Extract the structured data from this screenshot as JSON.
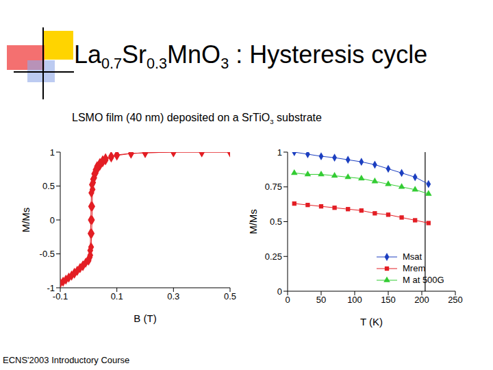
{
  "slide": {
    "title": "La0.7Sr0.3MnO3 : Hysteresis cycle",
    "subtitle": "LSMO film (40 nm) deposited on a SrTiO3 substrate",
    "footer": "ECNS'2003 Introductory Course"
  },
  "chart_data": [
    {
      "type": "scatter",
      "x_label": "B (T)",
      "y_label": "M/Ms",
      "xlim": [
        -0.1,
        0.5
      ],
      "xticks": [
        -0.1,
        0.1,
        0.3,
        0.5
      ],
      "ylim": [
        -1,
        1
      ],
      "yticks": [
        -1,
        -0.5,
        0,
        0.5,
        1
      ],
      "marker": "diamond",
      "line_style": "solid",
      "series": [
        {
          "color": "#e31e24",
          "x": [
            -0.1,
            -0.09,
            -0.08,
            -0.07,
            -0.06,
            -0.05,
            -0.04,
            -0.03,
            -0.02,
            -0.01,
            0,
            0.006,
            0.009,
            0.011,
            0.012,
            0.013,
            0.014,
            0.016,
            0.02,
            0.025,
            0.03,
            0.04,
            0.05,
            0.06,
            0.08,
            0.1,
            0.15,
            0.2,
            0.3,
            0.4,
            0.5
          ],
          "values": [
            -0.93,
            -0.91,
            -0.88,
            -0.85,
            -0.82,
            -0.78,
            -0.75,
            -0.71,
            -0.67,
            -0.63,
            -0.58,
            -0.52,
            -0.4,
            -0.2,
            0,
            0.2,
            0.45,
            0.55,
            0.62,
            0.69,
            0.74,
            0.8,
            0.85,
            0.88,
            0.92,
            0.95,
            0.98,
            0.99,
            1,
            1,
            1
          ]
        },
        {
          "color": "#e31e24",
          "x": [
            0.5,
            0.4,
            0.3,
            0.2,
            0.15,
            0.1,
            0.08,
            0.06,
            0.05,
            0.04,
            0.03,
            0.025,
            0.02,
            0.016,
            0.012,
            0.01,
            0.009,
            0.008,
            0.007,
            0.006,
            0.004,
            0,
            -0.02,
            -0.05,
            -0.1
          ],
          "values": [
            1,
            1,
            1,
            0.99,
            0.98,
            0.96,
            0.94,
            0.91,
            0.88,
            0.84,
            0.79,
            0.74,
            0.68,
            0.6,
            0.52,
            0.4,
            0.2,
            0,
            -0.2,
            -0.45,
            -0.55,
            -0.6,
            -0.68,
            -0.79,
            -0.93
          ]
        }
      ]
    },
    {
      "type": "line",
      "x_label": "T (K)",
      "y_label": "M/Ms",
      "x": [
        10,
        30,
        50,
        70,
        90,
        110,
        130,
        150,
        170,
        190,
        210
      ],
      "xlim": [
        0,
        250
      ],
      "xticks": [
        0,
        50,
        100,
        150,
        200,
        250
      ],
      "ylim": [
        0,
        1
      ],
      "yticks": [
        0,
        0.25,
        0.5,
        0.75,
        1
      ],
      "legend": "lower right",
      "vline": 205,
      "series": [
        {
          "name": "Msat",
          "color": "#1c3fc0",
          "marker": "diamond",
          "line_style": "solid",
          "values": [
            1.0,
            0.985,
            0.97,
            0.96,
            0.945,
            0.93,
            0.91,
            0.88,
            0.85,
            0.82,
            0.77
          ]
        },
        {
          "name": "Mrem",
          "color": "#e31e24",
          "marker": "square",
          "line_style": "solid",
          "values": [
            0.63,
            0.62,
            0.61,
            0.6,
            0.59,
            0.58,
            0.56,
            0.55,
            0.53,
            0.51,
            0.49
          ]
        },
        {
          "name": "M at 500G",
          "color": "#33cc33",
          "marker": "triangle",
          "line_style": "solid",
          "values": [
            0.85,
            0.84,
            0.84,
            0.83,
            0.82,
            0.81,
            0.79,
            0.77,
            0.75,
            0.73,
            0.7
          ]
        }
      ]
    }
  ]
}
